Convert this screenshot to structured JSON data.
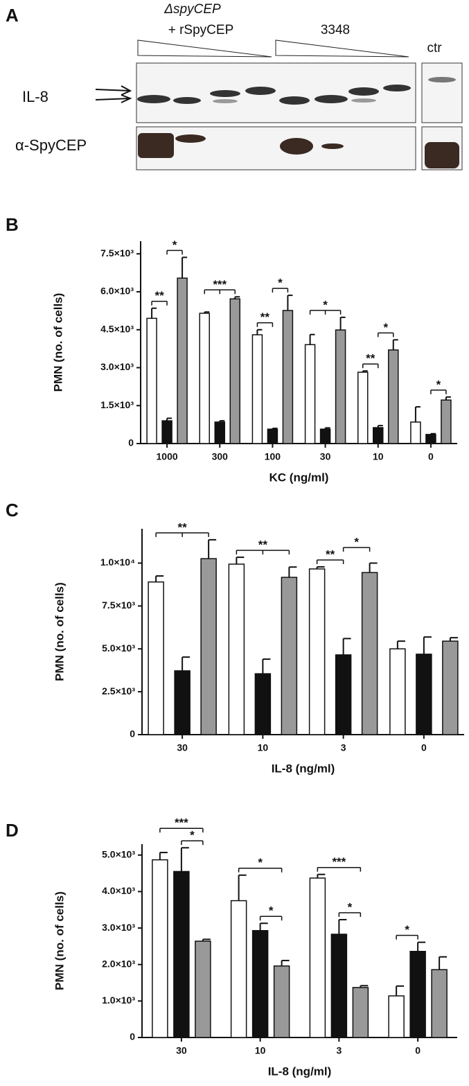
{
  "blot": {
    "panel": "A",
    "group_1": [
      "ΔspyCEP",
      "+ rSpyCEP"
    ],
    "group_2": "3348",
    "control": "ctr",
    "rows": [
      "IL-8",
      "α-SpyCEP"
    ]
  },
  "chart_data": [
    {
      "type": "bar",
      "panel": "B",
      "xlabel": "KC (ng/ml)",
      "ylabel": "PMN (no. of cells)",
      "categories": [
        "1000",
        "300",
        "100",
        "30",
        "10",
        "0"
      ],
      "series": [
        {
          "color": "#ffffff",
          "values": [
            4950,
            5150,
            4300,
            3910,
            2820,
            850
          ],
          "errors": [
            400,
            50,
            200,
            400,
            50,
            600
          ]
        },
        {
          "color": "#111111",
          "values": [
            900,
            850,
            570,
            570,
            630,
            360
          ],
          "errors": [
            100,
            50,
            30,
            50,
            80,
            30
          ]
        },
        {
          "color": "#999999",
          "values": [
            6540,
            5720,
            5260,
            4490,
            3700,
            1720
          ],
          "errors": [
            820,
            80,
            600,
            500,
            400,
            120
          ]
        }
      ],
      "ylim": [
        0,
        8000
      ],
      "yticks": [
        0,
        {
          "value": 1500,
          "label": "1.5×10³"
        },
        {
          "value": 3000,
          "label": "3.0×10³"
        },
        {
          "value": 4500,
          "label": "4.5×10³"
        },
        {
          "value": 6000,
          "label": "6.0×10³"
        },
        {
          "value": 7500,
          "label": "7.5×10³"
        }
      ],
      "annotations": [
        {
          "text": "**",
          "category": 0,
          "between": [
            0,
            1
          ]
        },
        {
          "text": "*",
          "category": 0,
          "between": [
            1,
            2
          ]
        },
        {
          "text": "***",
          "category": 1,
          "between": [
            0,
            1,
            2
          ]
        },
        {
          "text": "**",
          "category": 2,
          "between": [
            0,
            1
          ]
        },
        {
          "text": "*",
          "category": 2,
          "between": [
            1,
            2
          ]
        },
        {
          "text": "*",
          "category": 3,
          "between": [
            0,
            1,
            2
          ]
        },
        {
          "text": "**",
          "category": 4,
          "between": [
            0,
            1
          ]
        },
        {
          "text": "*",
          "category": 4,
          "between": [
            1,
            2
          ]
        },
        {
          "text": "*",
          "category": 5,
          "between": [
            1,
            2
          ]
        }
      ]
    },
    {
      "type": "bar",
      "panel": "C",
      "xlabel": "IL-8 (ng/ml)",
      "ylabel": "PMN (no. of cells)",
      "categories": [
        "30",
        "10",
        "3",
        "0"
      ],
      "series": [
        {
          "color": "#ffffff",
          "values": [
            8900,
            9940,
            9660,
            5000
          ],
          "errors": [
            350,
            400,
            120,
            450
          ]
        },
        {
          "color": "#111111",
          "values": [
            3720,
            3550,
            4650,
            4690
          ],
          "errors": [
            800,
            850,
            950,
            1000
          ]
        },
        {
          "color": "#999999",
          "values": [
            10260,
            9170,
            9450,
            5450
          ],
          "errors": [
            1100,
            600,
            550,
            200
          ]
        }
      ],
      "ylim": [
        0,
        12000
      ],
      "yticks": [
        0,
        {
          "value": 2500,
          "label": "2.5×10³"
        },
        {
          "value": 5000,
          "label": "5.0×10³"
        },
        {
          "value": 7500,
          "label": "7.5×10³"
        },
        {
          "value": 10000,
          "label": "1.0×10⁴"
        }
      ],
      "annotations": [
        {
          "text": "**",
          "category": 0,
          "between": [
            0,
            1,
            2
          ]
        },
        {
          "text": "**",
          "category": 1,
          "between": [
            0,
            1,
            2
          ]
        },
        {
          "text": "**",
          "category": 2,
          "between": [
            0,
            1
          ]
        },
        {
          "text": "*",
          "category": 2,
          "between": [
            1,
            2
          ]
        }
      ]
    },
    {
      "type": "bar",
      "panel": "D",
      "xlabel": "IL-8 (ng/ml)",
      "ylabel": "PMN (no. of cells)",
      "categories": [
        "30",
        "10",
        "3",
        "0"
      ],
      "series": [
        {
          "color": "#ffffff",
          "values": [
            4870,
            3750,
            4370,
            1140
          ],
          "errors": [
            200,
            700,
            100,
            270
          ]
        },
        {
          "color": "#111111",
          "values": [
            4550,
            2930,
            2830,
            2360
          ],
          "errors": [
            650,
            200,
            400,
            250
          ]
        },
        {
          "color": "#999999",
          "values": [
            2640,
            1960,
            1370,
            1860
          ],
          "errors": [
            50,
            150,
            50,
            350
          ]
        }
      ],
      "ylim": [
        0,
        5300
      ],
      "yticks": [
        0,
        {
          "value": 1000,
          "label": "1.0×10³"
        },
        {
          "value": 2000,
          "label": "2.0×10³"
        },
        {
          "value": 3000,
          "label": "3.0×10³"
        },
        {
          "value": 4000,
          "label": "4.0×10³"
        },
        {
          "value": 5000,
          "label": "5.0×10³"
        }
      ],
      "annotations": [
        {
          "text": "*",
          "category": 0,
          "between": [
            1,
            2
          ]
        },
        {
          "text": "***",
          "category": 0,
          "between": [
            0,
            2
          ]
        },
        {
          "text": "*",
          "category": 1,
          "between": [
            1,
            2
          ]
        },
        {
          "text": "*",
          "category": 1,
          "between": [
            0,
            2
          ]
        },
        {
          "text": "*",
          "category": 2,
          "between": [
            1,
            2
          ]
        },
        {
          "text": "***",
          "category": 2,
          "between": [
            0,
            2
          ]
        },
        {
          "text": "*",
          "category": 3,
          "between": [
            0,
            1
          ]
        }
      ]
    }
  ]
}
